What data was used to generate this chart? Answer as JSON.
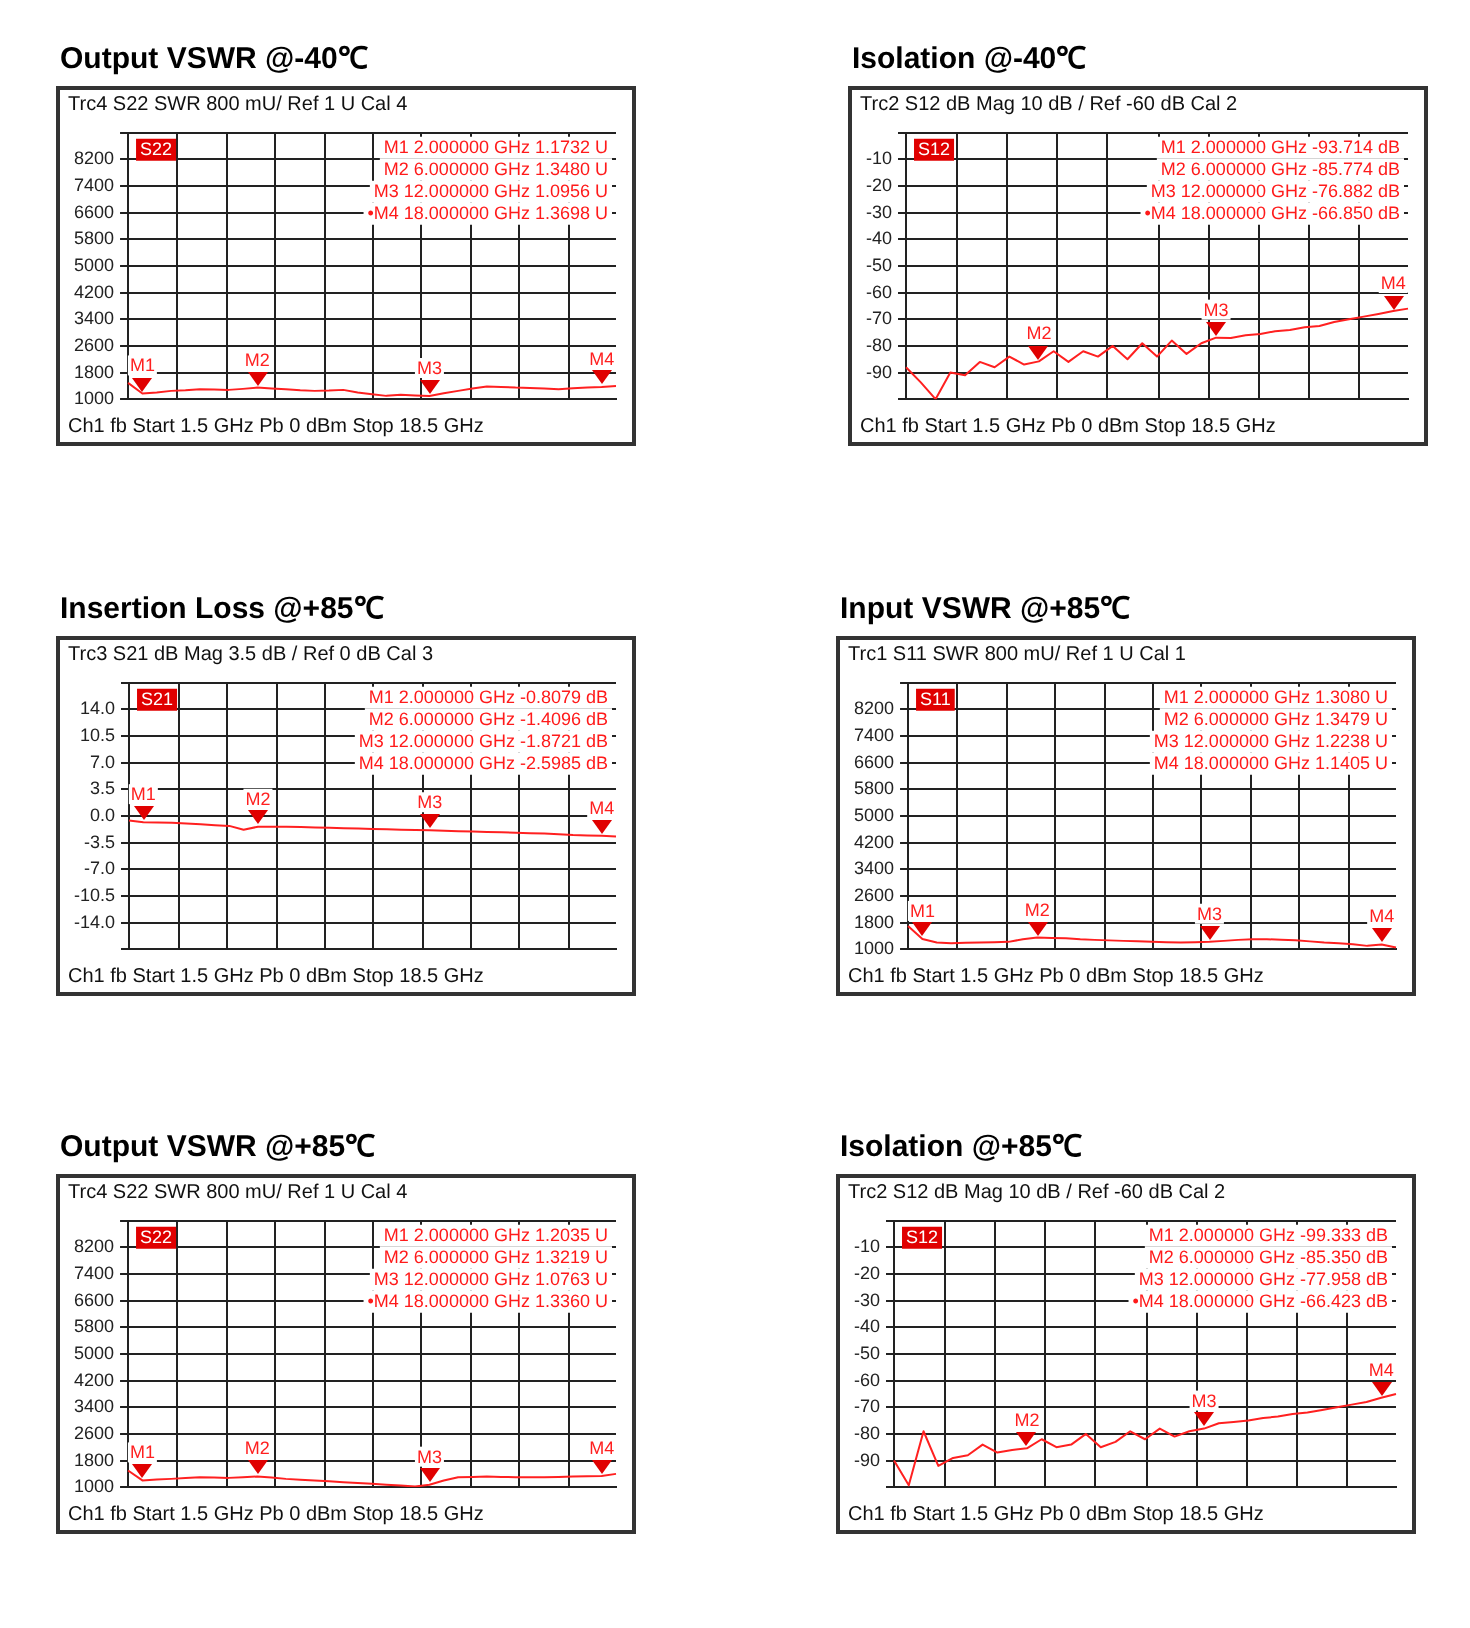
{
  "chart_data": [
    {
      "type": "line",
      "title": "Output VSWR @-40℃",
      "categories": [
        null,
        null,
        null,
        null,
        null,
        null,
        null,
        null,
        null,
        null,
        null,
        null,
        null,
        null,
        null,
        null,
        null,
        null,
        null,
        null,
        null,
        null,
        null,
        null,
        null,
        null,
        null,
        null,
        null,
        null,
        null,
        null,
        null,
        null,
        null
      ],
      "ylim": [
        1000,
        9000
      ],
      "yticks": [
        1000,
        1800,
        2600,
        3400,
        4200,
        5000,
        5800,
        6600,
        7400,
        8200,
        {
          "value": 9000,
          "label": null
        }
      ],
      "tick_labels": "y",
      "grid": true,
      "legend": false,
      "marker": "none",
      "series": [
        {
          "color": "#ff2020",
          "values": [
            1490,
            1173,
            1200,
            1250,
            1270,
            1300,
            1290,
            1280,
            1310,
            1348,
            1320,
            1300,
            1270,
            1250,
            1260,
            1280,
            1200,
            1150,
            1100,
            1130,
            1110,
            1096,
            1180,
            1250,
            1320,
            1380,
            1370,
            1350,
            1340,
            1320,
            1300,
            1330,
            1350,
            1370,
            1400
          ],
          "value_labels": [
            null,
            "M1",
            null,
            null,
            null,
            null,
            null,
            null,
            null,
            "M2",
            null,
            null,
            null,
            null,
            null,
            null,
            null,
            null,
            null,
            null,
            null,
            "M3",
            null,
            null,
            null,
            null,
            null,
            null,
            null,
            null,
            null,
            null,
            null,
            "M4",
            null
          ]
        }
      ],
      "annotations": [
        "Trc4 S22 SWR 800 mU/ Ref 1 U Cal 4",
        "Ch1 fb Start 1.5 GHz Pb 0 dBm Stop 18.5 GHz",
        "S22",
        "M1 2.000000 GHz 1.1732 U",
        "M2 6.000000 GHz 1.3480 U",
        "M3 12.000000 GHz 1.0956 U",
        "•M4 18.000000 GHz 1.3698 U"
      ]
    },
    {
      "type": "line",
      "title": "Isolation @-40℃",
      "categories": [
        null,
        null,
        null,
        null,
        null,
        null,
        null,
        null,
        null,
        null,
        null,
        null,
        null,
        null,
        null,
        null,
        null,
        null,
        null,
        null,
        null,
        null,
        null,
        null,
        null,
        null,
        null,
        null,
        null,
        null,
        null,
        null,
        null,
        null,
        null
      ],
      "ylim": [
        -100,
        0
      ],
      "yticks": [
        {
          "value": -100,
          "label": null
        },
        -90,
        -80,
        -70,
        -60,
        -50,
        -40,
        -30,
        -20,
        -10,
        {
          "value": 0,
          "label": null
        }
      ],
      "tick_labels": "y",
      "grid": true,
      "legend": false,
      "marker": "none",
      "series": [
        {
          "color": "#ff2020",
          "values": [
            -88,
            -93.7,
            -100,
            -90,
            -91,
            -86,
            -88,
            -84,
            -87,
            -85.8,
            -82,
            -86,
            -82,
            -84,
            -80,
            -85,
            -79,
            -84,
            -78,
            -83,
            -79,
            -76.9,
            -77,
            -76,
            -75.5,
            -74.5,
            -74,
            -73,
            -72.5,
            -71,
            -70,
            -69,
            -68,
            -66.9,
            -66
          ],
          "value_labels": [
            null,
            null,
            null,
            null,
            null,
            null,
            null,
            null,
            null,
            "M2",
            null,
            null,
            null,
            null,
            null,
            null,
            null,
            null,
            null,
            null,
            null,
            "M3",
            null,
            null,
            null,
            null,
            null,
            null,
            null,
            null,
            null,
            null,
            null,
            "M4",
            null
          ]
        }
      ],
      "annotations": [
        "Trc2 S12 dB Mag 10 dB / Ref -60 dB Cal 2",
        "Ch1 fb Start 1.5 GHz Pb 0 dBm Stop 18.5 GHz",
        "S12",
        "M1 2.000000 GHz -93.714 dB",
        "M2 6.000000 GHz -85.774 dB",
        "M3 12.000000 GHz -76.882 dB",
        "•M4 18.000000 GHz -66.850 dB"
      ]
    },
    {
      "type": "line",
      "title": "Insertion Loss @+85℃",
      "categories": [
        null,
        null,
        null,
        null,
        null,
        null,
        null,
        null,
        null,
        null,
        null,
        null,
        null,
        null,
        null,
        null,
        null,
        null,
        null,
        null,
        null,
        null,
        null,
        null,
        null,
        null,
        null,
        null,
        null,
        null,
        null,
        null,
        null,
        null,
        null
      ],
      "ylim": [
        -17.5,
        17.5
      ],
      "yticks": [
        {
          "value": -17.5,
          "label": null
        },
        {
          "value": -14,
          "label": "-14.0"
        },
        {
          "value": -10.5,
          "label": "-10.5"
        },
        {
          "value": -7,
          "label": "-7.0"
        },
        {
          "value": -3.5,
          "label": "-3.5"
        },
        {
          "value": 0,
          "label": "0.0"
        },
        {
          "value": 3.5,
          "label": "3.5"
        },
        {
          "value": 7,
          "label": "7.0"
        },
        {
          "value": 10.5,
          "label": "10.5"
        },
        {
          "value": 14,
          "label": "14.0"
        },
        {
          "value": 17.5,
          "label": null
        }
      ],
      "tick_labels": "y",
      "grid": true,
      "legend": false,
      "marker": "none",
      "series": [
        {
          "color": "#ff2020",
          "values": [
            -0.6,
            -0.81,
            -0.85,
            -0.9,
            -1,
            -1.1,
            -1.2,
            -1.3,
            -1.8,
            -1.41,
            -1.4,
            -1.4,
            -1.45,
            -1.5,
            -1.55,
            -1.6,
            -1.65,
            -1.7,
            -1.75,
            -1.8,
            -1.85,
            -1.87,
            -1.95,
            -2,
            -2.05,
            -2.1,
            -2.15,
            -2.2,
            -2.25,
            -2.3,
            -2.4,
            -2.5,
            -2.55,
            -2.6,
            -2.7
          ],
          "value_labels": [
            null,
            "M1",
            null,
            null,
            null,
            null,
            null,
            null,
            null,
            "M2",
            null,
            null,
            null,
            null,
            null,
            null,
            null,
            null,
            null,
            null,
            null,
            "M3",
            null,
            null,
            null,
            null,
            null,
            null,
            null,
            null,
            null,
            null,
            null,
            "M4",
            null
          ]
        }
      ],
      "annotations": [
        "Trc3 S21 dB Mag 3.5 dB / Ref 0 dB Cal 3",
        "Ch1 fb Start 1.5 GHz Pb 0 dBm Stop 18.5 GHz",
        "S21",
        "M1 2.000000 GHz -0.8079 dB",
        "M2 6.000000 GHz -1.4096 dB",
        "M3 12.000000 GHz -1.8721 dB",
        "M4 18.000000 GHz -2.5985 dB"
      ]
    },
    {
      "type": "line",
      "title": "Input VSWR @+85℃",
      "categories": [
        null,
        null,
        null,
        null,
        null,
        null,
        null,
        null,
        null,
        null,
        null,
        null,
        null,
        null,
        null,
        null,
        null,
        null,
        null,
        null,
        null,
        null,
        null,
        null,
        null,
        null,
        null,
        null,
        null,
        null,
        null,
        null,
        null,
        null,
        null
      ],
      "ylim": [
        1000,
        9000
      ],
      "yticks": [
        1000,
        1800,
        2600,
        3400,
        4200,
        5000,
        5800,
        6600,
        7400,
        8200,
        {
          "value": 9000,
          "label": null
        }
      ],
      "tick_labels": "y",
      "grid": true,
      "legend": false,
      "marker": "none",
      "series": [
        {
          "color": "#ff2020",
          "values": [
            1700,
            1308,
            1200,
            1180,
            1190,
            1200,
            1210,
            1220,
            1300,
            1348,
            1340,
            1330,
            1300,
            1280,
            1265,
            1250,
            1235,
            1220,
            1210,
            1200,
            1210,
            1224,
            1250,
            1280,
            1300,
            1300,
            1285,
            1270,
            1235,
            1200,
            1175,
            1150,
            1100,
            1141,
            1050
          ],
          "value_labels": [
            null,
            "M1",
            null,
            null,
            null,
            null,
            null,
            null,
            null,
            "M2",
            null,
            null,
            null,
            null,
            null,
            null,
            null,
            null,
            null,
            null,
            null,
            "M3",
            null,
            null,
            null,
            null,
            null,
            null,
            null,
            null,
            null,
            null,
            null,
            "M4",
            null
          ]
        }
      ],
      "annotations": [
        "Trc1 S11 SWR 800 mU/ Ref 1 U Cal 1",
        "Ch1 fb Start 1.5 GHz Pb 0 dBm Stop 18.5 GHz",
        "S11",
        "M1 2.000000 GHz 1.3080 U",
        "M2 6.000000 GHz 1.3479 U",
        "M3 12.000000 GHz 1.2238 U",
        "M4 18.000000 GHz 1.1405 U"
      ]
    },
    {
      "type": "line",
      "title": "Output VSWR @+85℃",
      "categories": [
        null,
        null,
        null,
        null,
        null,
        null,
        null,
        null,
        null,
        null,
        null,
        null,
        null,
        null,
        null,
        null,
        null,
        null,
        null,
        null,
        null,
        null,
        null,
        null,
        null,
        null,
        null,
        null,
        null,
        null,
        null,
        null,
        null,
        null,
        null
      ],
      "ylim": [
        1000,
        9000
      ],
      "yticks": [
        1000,
        1800,
        2600,
        3400,
        4200,
        5000,
        5800,
        6600,
        7400,
        8200,
        {
          "value": 9000,
          "label": null
        }
      ],
      "tick_labels": "y",
      "grid": true,
      "legend": false,
      "marker": "none",
      "series": [
        {
          "color": "#ff2020",
          "values": [
            1500,
            1204,
            1230,
            1250,
            1275,
            1300,
            1290,
            1280,
            1300,
            1322,
            1290,
            1250,
            1225,
            1200,
            1175,
            1150,
            1125,
            1100,
            1075,
            1050,
            1020,
            1076,
            1200,
            1300,
            1310,
            1320,
            1310,
            1300,
            1300,
            1300,
            1310,
            1320,
            1330,
            1336,
            1400
          ],
          "value_labels": [
            null,
            "M1",
            null,
            null,
            null,
            null,
            null,
            null,
            null,
            "M2",
            null,
            null,
            null,
            null,
            null,
            null,
            null,
            null,
            null,
            null,
            null,
            "M3",
            null,
            null,
            null,
            null,
            null,
            null,
            null,
            null,
            null,
            null,
            null,
            "M4",
            null
          ]
        }
      ],
      "annotations": [
        "Trc4 S22 SWR 800 mU/ Ref 1 U Cal 4",
        "Ch1 fb Start 1.5 GHz Pb 0 dBm Stop 18.5 GHz",
        "S22",
        "M1 2.000000 GHz 1.2035 U",
        "M2 6.000000 GHz 1.3219 U",
        "M3 12.000000 GHz 1.0763 U",
        "•M4 18.000000 GHz 1.3360 U"
      ]
    },
    {
      "type": "line",
      "title": "Isolation @+85℃",
      "categories": [
        null,
        null,
        null,
        null,
        null,
        null,
        null,
        null,
        null,
        null,
        null,
        null,
        null,
        null,
        null,
        null,
        null,
        null,
        null,
        null,
        null,
        null,
        null,
        null,
        null,
        null,
        null,
        null,
        null,
        null,
        null,
        null,
        null,
        null,
        null
      ],
      "ylim": [
        -100,
        0
      ],
      "yticks": [
        {
          "value": -100,
          "label": null
        },
        -90,
        -80,
        -70,
        -60,
        -50,
        -40,
        -30,
        -20,
        -10,
        {
          "value": 0,
          "label": null
        }
      ],
      "tick_labels": "y",
      "grid": true,
      "legend": false,
      "marker": "none",
      "series": [
        {
          "color": "#ff2020",
          "values": [
            -90,
            -99.3,
            -79,
            -92,
            -89,
            -88,
            -84,
            -87,
            -86,
            -85.4,
            -82,
            -85,
            -84,
            -80,
            -85,
            -83,
            -79,
            -82,
            -78,
            -81,
            -79,
            -78,
            -76,
            -75.5,
            -75,
            -74,
            -73.5,
            -72.5,
            -72,
            -71,
            -70,
            -69,
            -68,
            -66.4,
            -65
          ],
          "value_labels": [
            null,
            null,
            null,
            null,
            null,
            null,
            null,
            null,
            null,
            "M2",
            null,
            null,
            null,
            null,
            null,
            null,
            null,
            null,
            null,
            null,
            null,
            "M3",
            null,
            null,
            null,
            null,
            null,
            null,
            null,
            null,
            null,
            null,
            null,
            "M4",
            null
          ]
        }
      ],
      "annotations": [
        "Trc2 S12 dB Mag 10 dB / Ref -60 dB Cal 2",
        "Ch1 fb Start 1.5 GHz Pb 0 dBm Stop 18.5 GHz",
        "S12",
        "M1 2.000000 GHz -99.333 dB",
        "M2 6.000000 GHz -85.350 dB",
        "M3 12.000000 GHz -77.958 dB",
        "•M4 18.000000 GHz -66.423 dB"
      ]
    }
  ]
}
